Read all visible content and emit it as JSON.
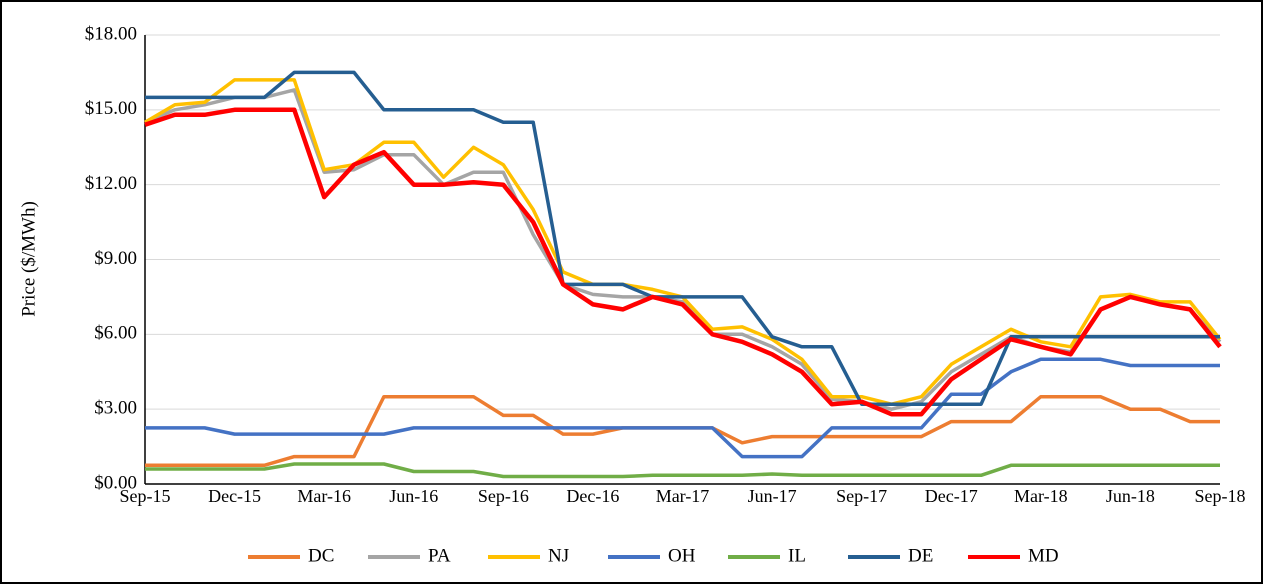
{
  "chart_data": {
    "type": "line",
    "y_label": "Price ($/MWh)",
    "categories": [
      "Sep-15",
      null,
      null,
      "Dec-15",
      null,
      null,
      "Mar-16",
      null,
      null,
      "Jun-16",
      null,
      null,
      "Sep-16",
      null,
      null,
      "Dec-16",
      null,
      null,
      "Mar-17",
      null,
      null,
      "Jun-17",
      null,
      null,
      "Sep-17",
      null,
      null,
      "Dec-17",
      null,
      null,
      "Mar-18",
      null,
      null,
      "Jun-18",
      null,
      null,
      "Sep-18"
    ],
    "series": [
      {
        "name": "DC",
        "color": "#ed7d31",
        "values": [
          0.75,
          0.75,
          0.75,
          0.75,
          0.75,
          1.1,
          1.1,
          1.1,
          3.5,
          3.5,
          3.5,
          3.5,
          2.75,
          2.75,
          2.0,
          2.0,
          2.25,
          2.25,
          2.25,
          2.25,
          1.65,
          1.9,
          1.9,
          1.9,
          1.9,
          1.9,
          1.9,
          2.5,
          2.5,
          2.5,
          3.5,
          3.5,
          3.5,
          3.0,
          3.0,
          2.5,
          2.5
        ]
      },
      {
        "name": "PA",
        "color": "#a5a5a5",
        "values": [
          14.5,
          15.0,
          15.2,
          15.5,
          15.5,
          15.8,
          12.5,
          12.6,
          13.2,
          13.2,
          12.0,
          12.5,
          12.5,
          10.0,
          8.0,
          7.6,
          7.5,
          7.5,
          7.3,
          6.0,
          6.0,
          5.5,
          4.8,
          3.4,
          3.3,
          3.0,
          3.3,
          4.5,
          5.2,
          5.9,
          5.5,
          5.3,
          7.0,
          7.5,
          7.2,
          7.0,
          5.7
        ]
      },
      {
        "name": "NJ",
        "color": "#ffc000",
        "values": [
          14.5,
          15.2,
          15.3,
          16.2,
          16.2,
          16.2,
          12.6,
          12.8,
          13.7,
          13.7,
          12.3,
          13.5,
          12.8,
          11.0,
          8.5,
          8.0,
          8.0,
          7.8,
          7.5,
          6.2,
          6.3,
          5.8,
          5.0,
          3.5,
          3.5,
          3.2,
          3.5,
          4.8,
          5.5,
          6.2,
          5.7,
          5.5,
          7.5,
          7.6,
          7.3,
          7.3,
          5.8
        ]
      },
      {
        "name": "OH",
        "color": "#4472c4",
        "values": [
          2.25,
          2.25,
          2.25,
          2.0,
          2.0,
          2.0,
          2.0,
          2.0,
          2.0,
          2.25,
          2.25,
          2.25,
          2.25,
          2.25,
          2.25,
          2.25,
          2.25,
          2.25,
          2.25,
          2.25,
          1.1,
          1.1,
          1.1,
          2.25,
          2.25,
          2.25,
          2.25,
          3.6,
          3.6,
          4.5,
          5.0,
          5.0,
          5.0,
          4.75,
          4.75,
          4.75,
          4.75
        ]
      },
      {
        "name": "IL",
        "color": "#70ad47",
        "values": [
          0.6,
          0.6,
          0.6,
          0.6,
          0.6,
          0.8,
          0.8,
          0.8,
          0.8,
          0.5,
          0.5,
          0.5,
          0.3,
          0.3,
          0.3,
          0.3,
          0.3,
          0.35,
          0.35,
          0.35,
          0.35,
          0.4,
          0.35,
          0.35,
          0.35,
          0.35,
          0.35,
          0.35,
          0.35,
          0.75,
          0.75,
          0.75,
          0.75,
          0.75,
          0.75,
          0.75,
          0.75
        ]
      },
      {
        "name": "DE",
        "color": "#255e91",
        "values": [
          15.5,
          15.5,
          15.5,
          15.5,
          15.5,
          16.5,
          16.5,
          16.5,
          15,
          15,
          15,
          15,
          14.5,
          14.5,
          8,
          8,
          8,
          7.5,
          7.5,
          7.5,
          7.5,
          5.9,
          5.5,
          5.5,
          3.2,
          3.2,
          3.2,
          3.2,
          3.2,
          5.9,
          5.9,
          5.9,
          5.9,
          5.9,
          5.9,
          5.9,
          5.9
        ]
      },
      {
        "name": "MD",
        "color": "#ff0000",
        "values": [
          14.4,
          14.8,
          14.8,
          15.0,
          15.0,
          15.0,
          11.5,
          12.8,
          13.3,
          12.0,
          12.0,
          12.1,
          12.0,
          10.5,
          8.0,
          7.2,
          7.0,
          7.5,
          7.2,
          6.0,
          5.7,
          5.2,
          4.5,
          3.2,
          3.3,
          2.8,
          2.8,
          4.2,
          5.0,
          5.8,
          5.5,
          5.2,
          7.0,
          7.5,
          7.2,
          7.0,
          5.5
        ]
      }
    ],
    "ylim": [
      0,
      18
    ],
    "yticks": [
      {
        "value": 0,
        "label": "$0.00"
      },
      {
        "value": 3,
        "label": "$3.00"
      },
      {
        "value": 6,
        "label": "$6.00"
      },
      {
        "value": 9,
        "label": "$9.00"
      },
      {
        "value": 12,
        "label": "$12.00"
      },
      {
        "value": 15,
        "label": "$15.00"
      },
      {
        "value": 18,
        "label": "$18.00"
      }
    ],
    "grid": true,
    "legend": "bottom"
  }
}
